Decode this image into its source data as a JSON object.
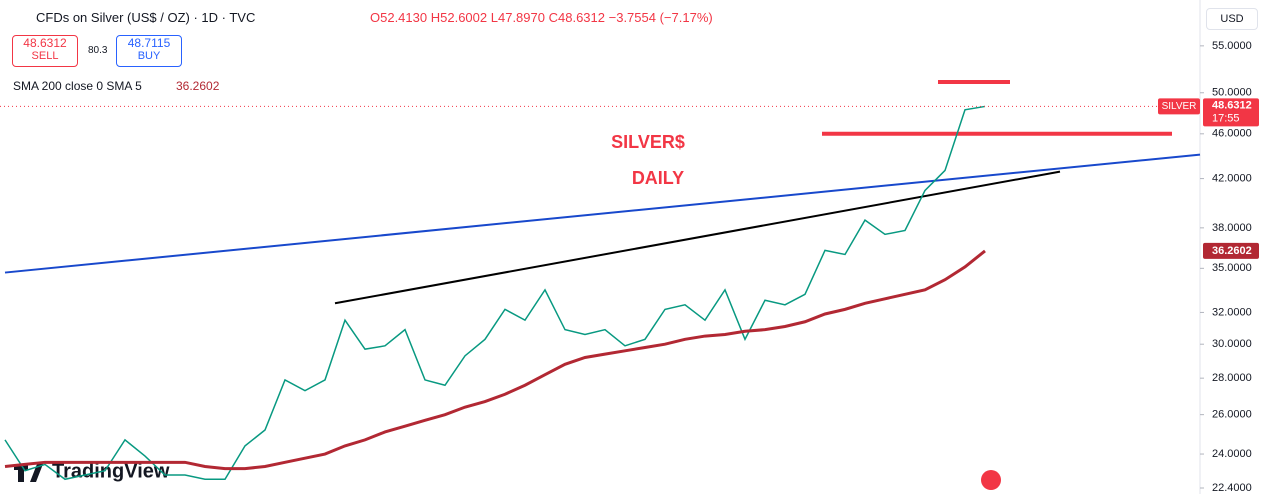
{
  "header": {
    "symbol": "CFDs on Silver (US$ / OZ) · 1D · TVC",
    "open": "O52.4130",
    "high": "H52.6002",
    "low": "L47.8970",
    "close": "C48.6312",
    "change": "−3.7554 (−7.17%)",
    "sell_price": "48.6312",
    "sell": "SELL",
    "spread": "80.3",
    "buy_price": "48.7115",
    "buy": "BUY",
    "indicator": "SMA 200 close 0 SMA 5",
    "indicator_value": "36.2602",
    "currency": "USD",
    "logo": "TradingView"
  },
  "chart_data": {
    "type": "line",
    "log_scale": true,
    "annotations": [
      "SILVER$",
      "DAILY"
    ],
    "categories": [
      null,
      null,
      null,
      null,
      null,
      null,
      null,
      null,
      null,
      null,
      null,
      null,
      null,
      null,
      null,
      null,
      null,
      null,
      null,
      null,
      null,
      null,
      null,
      null,
      null,
      null,
      null,
      null,
      null,
      null,
      null,
      null,
      null,
      null,
      null,
      null,
      null,
      null,
      null,
      null,
      null,
      null,
      null,
      null,
      null,
      null,
      null,
      null,
      null,
      null
    ],
    "series": [
      {
        "name": "SILVER",
        "color": "#089981",
        "values": [
          24.7,
          23.2,
          23.5,
          22.8,
          23.0,
          23.2,
          24.7,
          23.9,
          23.0,
          23.0,
          22.8,
          22.8,
          24.4,
          25.2,
          27.9,
          27.3,
          27.9,
          31.5,
          29.7,
          29.9,
          30.9,
          27.9,
          27.6,
          29.3,
          30.3,
          32.2,
          31.5,
          33.5,
          30.9,
          30.6,
          30.9,
          29.9,
          30.3,
          32.2,
          32.5,
          31.5,
          33.5,
          30.3,
          32.8,
          32.5,
          33.2,
          36.3,
          36.0,
          38.6,
          37.5,
          37.8,
          41.0,
          42.7,
          48.3,
          48.6312
        ]
      },
      {
        "name": "SMA 200",
        "color": "#b22833",
        "values": [
          23.4,
          23.5,
          23.6,
          23.6,
          23.6,
          23.6,
          23.6,
          23.6,
          23.6,
          23.6,
          23.4,
          23.3,
          23.3,
          23.4,
          23.6,
          23.8,
          24.0,
          24.4,
          24.7,
          25.1,
          25.4,
          25.7,
          26.0,
          26.4,
          26.7,
          27.1,
          27.6,
          28.2,
          28.8,
          29.2,
          29.4,
          29.6,
          29.8,
          30.0,
          30.3,
          30.5,
          30.6,
          30.8,
          30.9,
          31.1,
          31.4,
          31.9,
          32.2,
          32.6,
          32.9,
          33.2,
          33.5,
          34.2,
          35.1,
          36.2602
        ]
      }
    ],
    "last_price_tag": "SILVER",
    "countdown": "17:55",
    "drawings": [
      {
        "color": "#1848cc",
        "x": [
          0,
          59.75
        ],
        "y": [
          34.7,
          44.1
        ]
      },
      {
        "color": "#000000",
        "x": [
          16.5,
          52.75
        ],
        "y": [
          32.6,
          42.6
        ]
      },
      {
        "color": "#f23645",
        "x": [
          40.85,
          58.35
        ],
        "y": [
          46,
          46
        ]
      },
      {
        "color": "#f23645",
        "x": [
          46.65,
          50.25
        ],
        "y": [
          51.1,
          51.1
        ]
      }
    ],
    "ylim": [
      22.4,
      56.8
    ],
    "yticks": [
      {
        "value": 22.4,
        "label": "22.4000"
      },
      {
        "value": 24,
        "label": "24.0000"
      },
      {
        "value": 26,
        "label": "26.0000"
      },
      {
        "value": 28,
        "label": "28.0000"
      },
      {
        "value": 30,
        "label": "30.0000"
      },
      {
        "value": 32,
        "label": "32.0000"
      },
      {
        "value": 35,
        "label": "35.0000"
      },
      {
        "value": 38,
        "label": "38.0000"
      },
      {
        "value": 42,
        "label": "42.0000"
      },
      {
        "value": 46,
        "label": "46.0000"
      },
      {
        "value": 50,
        "label": "50.0000"
      },
      {
        "value": 55,
        "label": "55.0000"
      }
    ]
  }
}
